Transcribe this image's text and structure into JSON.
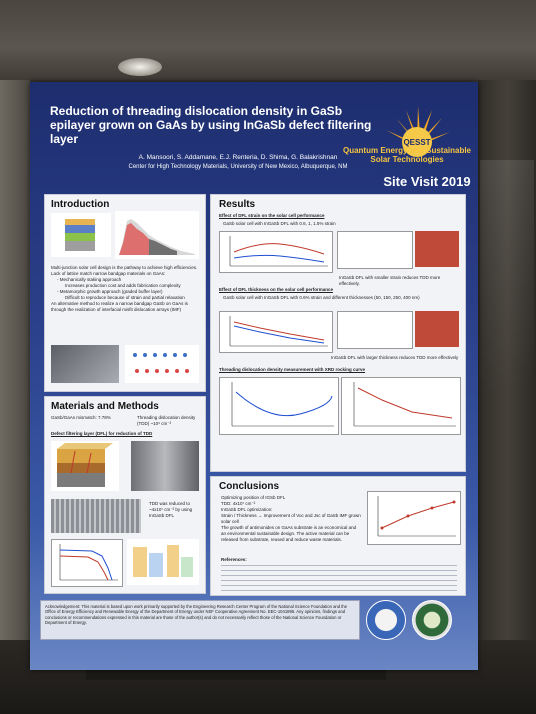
{
  "poster": {
    "title": "Reduction of threading dislocation density in GaSb epilayer grown on GaAs by using InGaSb defect filtering layer",
    "authors": "A. Mansoori, S. Addamane, E.J. Renteria, D. Shima, G. Balakrishnan",
    "affiliation": "Center for High Technology Materials, University of New Mexico, Albuquerque, NM",
    "logo_text": "Quantum Energy and Sustainable Solar Technologies",
    "logo_acronym": "QESST",
    "site_visit": "Site Visit 2019"
  },
  "sections": {
    "introduction": "Introduction",
    "materials": "Materials and Methods",
    "results": "Results",
    "conclusions": "Conclusions"
  },
  "intro": {
    "bullets": [
      "Multi-junction solar cell design is the pathway to achieve high efficiencies.",
      "Lack of lattice match narrow bandgap materials on GaAs:",
      "- Mechanically staking approach",
      "Increases production cost and adds fabrication complexity",
      "- Metamorphic growth approach (graded buffer layer)",
      "Difficult to reproduce because of strain and partial relaxation",
      "An alternative method to realize a narrow bandgap GaSb on GaAs is through the realization of interfacial misfit dislocation arrays (IMF)"
    ]
  },
  "materials": {
    "mismatch": "GaSb/GaAs mismatch: 7.78%",
    "tdd": "Threading dislocation density (TDD) ~10⁹ cm⁻²",
    "dfl_heading": "Defect filtering layer (DFL) for reduction of TDD",
    "tdd_reduced": "TDD was reduced to ~4x10⁷ cm⁻² by using InGaSb DFL"
  },
  "results": {
    "strain_heading": "Effect of DFL strain on the solar cell performance",
    "strain_text": "GaSb solar cell with InGaSb DFL with 0.6, 1, 1.5% strain",
    "strain_conclusion": "InGaSb DFL with smaller strain reduces TDD more effectively.",
    "thickness_heading": "Effect of DFL thickness on the solar cell performance",
    "thickness_text": "GaSb solar cell with InGaSb DFL with 0.6% strain and different thicknesses (50, 150, 250, 400 nm)",
    "thickness_conclusion": "InGaSb DFL with larger thickness reduces TDD more effectively",
    "xrd_heading": "Threading dislocation density measurement with XRD rocking curve"
  },
  "conclusions": {
    "bullets": [
      "Optimizing position of IGSb DFL",
      "TDD: 4x10⁷ cm⁻²",
      "InGaSb DFL optimization:",
      "Strain / Thickness → Improvement of Voc and Jsc of GaSb IMF grown solar cell",
      "The growth of antimonides on GaAs substrate is an economical and an environmental sustainable design. The active material can be released from substrate, reused and reduce waste materials."
    ],
    "references_heading": "References:"
  },
  "acknowledgement": "Acknowledgement: This material is based upon work primarily supported by the Engineering Research Center Program of the National Science Foundation and the Office of Energy Efficiency and Renewable Energy of the Department of Energy under NSF Cooperative Agreement No. EEC-1041895. Any opinions, findings and conclusions or recommendations expressed in this material are those of the author(s) and do not necessarily reflect those of the National Science Foundation or Department of Energy.",
  "colors": {
    "poster_bg": "#2b3f8a",
    "accent_red": "#c0392b",
    "logo_yellow": "#f5c542"
  }
}
